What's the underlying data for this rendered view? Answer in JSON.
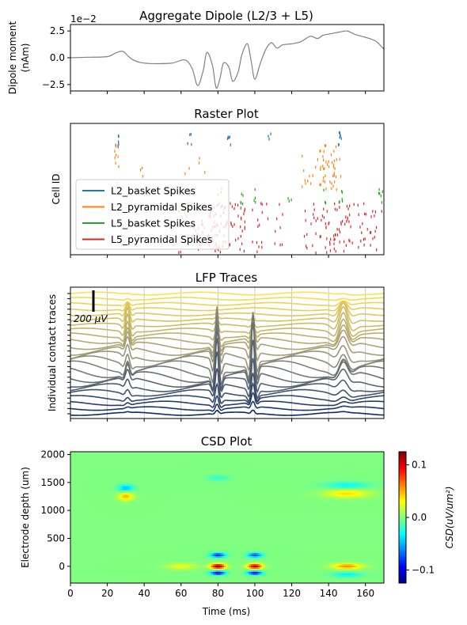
{
  "chart_data": [
    {
      "type": "line",
      "title": "Aggregate Dipole (L2/3 + L5)",
      "ylabel": "Dipole moment\n(nAm)",
      "offset_text": "1e−2",
      "xlim": [
        0,
        170
      ],
      "ylim": [
        -3.1,
        3.1
      ],
      "yticks": [
        "2.5",
        "0.0",
        "−2.5"
      ],
      "yticks_values": [
        2.5,
        0,
        -2.5
      ],
      "color": "#808080",
      "series": [
        {
          "x": [
            0,
            10,
            20,
            24,
            27,
            29,
            31,
            34,
            38,
            45,
            55,
            62,
            66,
            69,
            72,
            74,
            77,
            79,
            81,
            83,
            86,
            88,
            91,
            93,
            96,
            98,
            100,
            103,
            106,
            109,
            112,
            115,
            120,
            125,
            130,
            134,
            137,
            140,
            143,
            146,
            150,
            154,
            158,
            162,
            166,
            170
          ],
          "y": [
            0,
            0.05,
            0.1,
            0.4,
            0.6,
            0.55,
            0.2,
            -0.2,
            -0.45,
            -0.55,
            -0.5,
            -0.2,
            -1.0,
            -2.6,
            -1.2,
            0.5,
            -0.7,
            -2.8,
            -2.0,
            -0.5,
            -0.9,
            -2.2,
            -1.3,
            0.3,
            1.3,
            -0.3,
            -2.0,
            -0.5,
            0.8,
            1.4,
            0.9,
            1.2,
            1.3,
            1.5,
            2.0,
            1.8,
            2.1,
            2.2,
            2.3,
            2.4,
            2.5,
            2.2,
            2.0,
            1.8,
            1.5,
            0.8
          ]
        }
      ]
    },
    {
      "type": "scatter",
      "title": "Raster Plot",
      "ylabel": "Cell ID",
      "xlim": [
        0,
        170
      ],
      "legend": {
        "position": "lower-left",
        "entries": [
          {
            "name": "L2_basket Spikes",
            "color": "#1f77b4"
          },
          {
            "name": "L2_pyramidal Spikes",
            "color": "#ff7f0e"
          },
          {
            "name": "L5_basket Spikes",
            "color": "#2ca02c"
          },
          {
            "name": "L5_pyramidal Spikes",
            "color": "#d62728"
          }
        ]
      },
      "spike_groups": [
        {
          "series": "L2_basket",
          "color": "#1f77b4",
          "bursts": [
            [
              24,
              27,
              6
            ],
            [
              63,
              66,
              4
            ],
            [
              85,
              87,
              5
            ],
            [
              107,
              109,
              3
            ],
            [
              144,
              147,
              8
            ]
          ]
        },
        {
          "series": "L2_pyramidal",
          "color": "#ff7f0e",
          "bursts": [
            [
              23,
              27,
              10
            ],
            [
              38,
              40,
              3
            ],
            [
              62,
              74,
              6
            ],
            [
              125,
              133,
              10
            ],
            [
              134,
              147,
              45
            ]
          ]
        },
        {
          "series": "L5_basket",
          "color": "#2ca02c",
          "bursts": [
            [
              63,
              66,
              5
            ],
            [
              80,
              82,
              4
            ],
            [
              92,
              94,
              5
            ],
            [
              99,
              101,
              4
            ],
            [
              118,
              120,
              3
            ],
            [
              137,
              139,
              3
            ],
            [
              145,
              148,
              6
            ],
            [
              167,
              170,
              6
            ]
          ]
        },
        {
          "series": "L5_pyramidal",
          "color": "#d62728",
          "bursts": [
            [
              58,
              75,
              30
            ],
            [
              75,
              85,
              50
            ],
            [
              85,
              95,
              30
            ],
            [
              98,
              108,
              15
            ],
            [
              110,
              116,
              8
            ],
            [
              126,
              134,
              15
            ],
            [
              134,
              144,
              30
            ],
            [
              144,
              152,
              25
            ],
            [
              152,
              160,
              15
            ],
            [
              160,
              170,
              15
            ]
          ]
        }
      ]
    },
    {
      "type": "line",
      "title": "LFP Traces",
      "ylabel": "Individual contact traces",
      "scale_bar_label": "200 μV",
      "xlim": [
        0,
        170
      ],
      "n_traces": 24,
      "color_top": "#ffe04a",
      "color_mid": "#a09a7a",
      "color_bottom": "#0d2a66",
      "events": [
        {
          "t": 31,
          "amp": 0.5,
          "w": 2.5
        },
        {
          "t": 79.5,
          "amp": 1.0,
          "w": 2.2
        },
        {
          "t": 99,
          "amp": 1.0,
          "w": 2.2
        },
        {
          "t": 148,
          "amp": 0.55,
          "w": 5
        }
      ]
    },
    {
      "type": "heatmap",
      "title": "CSD Plot",
      "xlabel": "Time (ms)",
      "ylabel": "Electrode depth (um)",
      "xlim": [
        0,
        170
      ],
      "ylim": [
        -300,
        2050
      ],
      "xticks": [
        "0",
        "20",
        "40",
        "60",
        "80",
        "100",
        "120",
        "140",
        "160"
      ],
      "xticks_values": [
        0,
        20,
        40,
        60,
        80,
        100,
        120,
        140,
        160
      ],
      "yticks": [
        "2000",
        "1500",
        "1000",
        "500",
        "0"
      ],
      "yticks_values": [
        2000,
        1500,
        1000,
        500,
        0
      ],
      "colormap": "jet",
      "colorbar_label": "CSD(uV/um²)",
      "colorbar_range": [
        -0.125,
        0.125
      ],
      "colorbar_ticks": [
        "0.1",
        "0.0",
        "−0.1"
      ],
      "colorbar_ticks_values": [
        0.1,
        0,
        -0.1
      ],
      "sources": [
        {
          "t": 80,
          "d": 0,
          "amp": 0.12,
          "wt": 4,
          "wd": 45
        },
        {
          "t": 80,
          "d": -120,
          "amp": -0.11,
          "wt": 4,
          "wd": 35
        },
        {
          "t": 80,
          "d": 200,
          "amp": -0.09,
          "wt": 4,
          "wd": 40
        },
        {
          "t": 100,
          "d": 0,
          "amp": 0.11,
          "wt": 4,
          "wd": 45
        },
        {
          "t": 100,
          "d": -120,
          "amp": -0.1,
          "wt": 4,
          "wd": 35
        },
        {
          "t": 100,
          "d": 200,
          "amp": -0.08,
          "wt": 4,
          "wd": 40
        },
        {
          "t": 30,
          "d": 1250,
          "amp": 0.05,
          "wt": 4,
          "wd": 70
        },
        {
          "t": 30,
          "d": 1400,
          "amp": -0.05,
          "wt": 4,
          "wd": 60
        },
        {
          "t": 150,
          "d": 1300,
          "amp": 0.04,
          "wt": 12,
          "wd": 70
        },
        {
          "t": 150,
          "d": 1450,
          "amp": -0.03,
          "wt": 12,
          "wd": 60
        },
        {
          "t": 150,
          "d": 0,
          "amp": 0.06,
          "wt": 8,
          "wd": 50
        },
        {
          "t": 150,
          "d": -150,
          "amp": -0.035,
          "wt": 8,
          "wd": 40
        },
        {
          "t": 60,
          "d": 0,
          "amp": 0.03,
          "wt": 8,
          "wd": 50
        },
        {
          "t": 80,
          "d": 1580,
          "amp": -0.02,
          "wt": 6,
          "wd": 50
        }
      ]
    }
  ]
}
